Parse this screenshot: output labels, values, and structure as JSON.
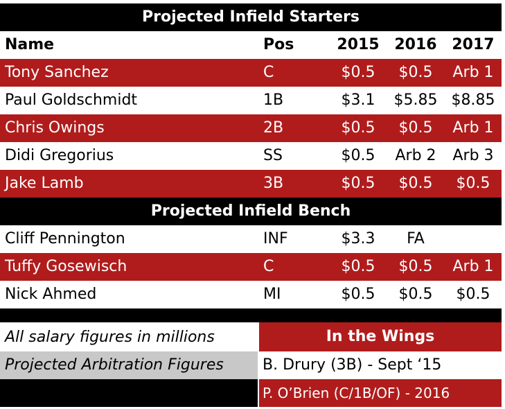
{
  "starters_title": "Projected Infield Starters",
  "bench_title": "Projected Infield Bench",
  "columns": {
    "name": "Name",
    "pos": "Pos",
    "y2015": "2015",
    "y2016": "2016",
    "y2017": "2017"
  },
  "starters": [
    {
      "name": "Tony Sanchez",
      "pos": "C",
      "y2015": "$0.5",
      "y2016": "$0.5",
      "y2017": "Arb 1"
    },
    {
      "name": "Paul Goldschmidt",
      "pos": "1B",
      "y2015": "$3.1",
      "y2016": "$5.85",
      "y2017": "$8.85"
    },
    {
      "name": "Chris Owings",
      "pos": "2B",
      "y2015": "$0.5",
      "y2016": "$0.5",
      "y2017": "Arb 1"
    },
    {
      "name": "Didi Gregorius",
      "pos": "SS",
      "y2015": "$0.5",
      "y2016": "Arb 2",
      "y2017": "Arb 3"
    },
    {
      "name": "Jake Lamb",
      "pos": "3B",
      "y2015": "$0.5",
      "y2016": "$0.5",
      "y2017": "$0.5"
    }
  ],
  "bench": [
    {
      "name": "Cliff Pennington",
      "pos": "INF",
      "y2015": "$3.3",
      "y2016": "FA",
      "y2017": ""
    },
    {
      "name": "Tuffy Gosewisch",
      "pos": "C",
      "y2015": "$0.5",
      "y2016": "$0.5",
      "y2017": "Arb 1"
    },
    {
      "name": "Nick Ahmed",
      "pos": "MI",
      "y2015": "$0.5",
      "y2016": "$0.5",
      "y2017": "$0.5"
    }
  ],
  "legend": {
    "salary_note": "All salary figures in millions",
    "arb_note": "Projected Arbitration Figures"
  },
  "wings": {
    "title": "In the Wings",
    "players": [
      "B. Drury (3B) - Sept ‘15",
      "P. O’Brien (C/1B/OF) - 2016"
    ]
  },
  "colors": {
    "red": "#b01c1c",
    "black": "#000000",
    "gray": "#c8c8c8",
    "white": "#ffffff"
  }
}
